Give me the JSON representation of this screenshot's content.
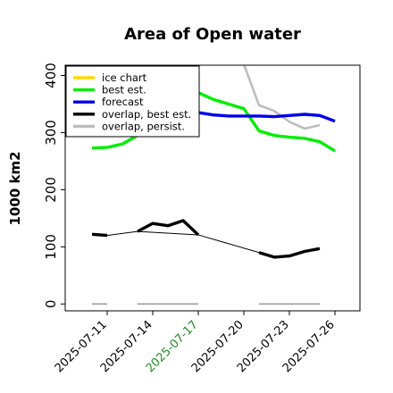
{
  "chart_data": {
    "type": "line",
    "title": "Area of Open water",
    "ylabel": "1000 km2",
    "xlabel": "",
    "ylim": [
      -12,
      418
    ],
    "yticks": [
      0,
      100,
      200,
      300,
      400
    ],
    "x_range": [
      "2025-07-08",
      "2025-07-27"
    ],
    "xticks": [
      "2025-07-11",
      "2025-07-14",
      "2025-07-17",
      "2025-07-20",
      "2025-07-23",
      "2025-07-26"
    ],
    "highlight_tick": "2025-07-17",
    "highlight_color": "#228b22",
    "legend_position": "top-left",
    "series": [
      {
        "name": "ice chart",
        "color": "#ffd700",
        "points": []
      },
      {
        "name": "best est.",
        "color": "#00ee00",
        "points": [
          [
            "2025-07-10",
            273
          ],
          [
            "2025-07-11",
            274
          ],
          [
            "2025-07-12",
            280
          ],
          [
            "2025-07-13",
            295
          ],
          [
            "2025-07-17",
            370
          ],
          [
            "2025-07-18",
            358
          ],
          [
            "2025-07-19",
            350
          ],
          [
            "2025-07-20",
            342
          ],
          [
            "2025-07-21",
            303
          ],
          [
            "2025-07-22",
            295
          ],
          [
            "2025-07-23",
            292
          ],
          [
            "2025-07-24",
            290
          ],
          [
            "2025-07-25",
            284
          ],
          [
            "2025-07-26",
            268
          ]
        ]
      },
      {
        "name": "forecast",
        "color": "#0000ee",
        "points": [
          [
            "2025-07-17",
            335
          ],
          [
            "2025-07-18",
            331
          ],
          [
            "2025-07-19",
            329
          ],
          [
            "2025-07-20",
            329
          ],
          [
            "2025-07-21",
            329
          ],
          [
            "2025-07-22",
            328
          ],
          [
            "2025-07-23",
            330
          ],
          [
            "2025-07-24",
            332
          ],
          [
            "2025-07-25",
            330
          ],
          [
            "2025-07-26",
            320
          ]
        ]
      },
      {
        "name": "overlap, best est.",
        "color": "#000000",
        "points": [
          [
            "2025-07-10",
            122
          ],
          [
            "2025-07-11",
            120
          ],
          [
            "2025-07-13",
            127
          ],
          [
            "2025-07-14",
            141
          ],
          [
            "2025-07-15",
            137
          ],
          [
            "2025-07-16",
            146
          ],
          [
            "2025-07-17",
            121
          ],
          [
            "2025-07-21",
            90
          ],
          [
            "2025-07-22",
            82
          ],
          [
            "2025-07-23",
            84
          ],
          [
            "2025-07-24",
            92
          ],
          [
            "2025-07-25",
            97
          ]
        ]
      },
      {
        "name": "overlap, persist.",
        "color": "#bdbdbd",
        "points": [
          [
            "2025-07-20",
            420
          ],
          [
            "2025-07-21",
            348
          ],
          [
            "2025-07-22",
            338
          ],
          [
            "2025-07-23",
            319
          ],
          [
            "2025-07-24",
            307
          ],
          [
            "2025-07-25",
            313
          ]
        ]
      }
    ],
    "connectors": {
      "best est.": [
        [
          "2025-07-13",
          295
        ],
        [
          "2025-07-17",
          370
        ]
      ],
      "overlap, best est.": [
        [
          "2025-07-11",
          120
        ],
        [
          "2025-07-13",
          127
        ],
        [
          "2025-07-17",
          121
        ],
        [
          "2025-07-21",
          90
        ]
      ]
    },
    "baseline_segments": [
      [
        "2025-07-10",
        "2025-07-11"
      ],
      [
        "2025-07-13",
        "2025-07-17"
      ],
      [
        "2025-07-21",
        "2025-07-25"
      ]
    ]
  }
}
